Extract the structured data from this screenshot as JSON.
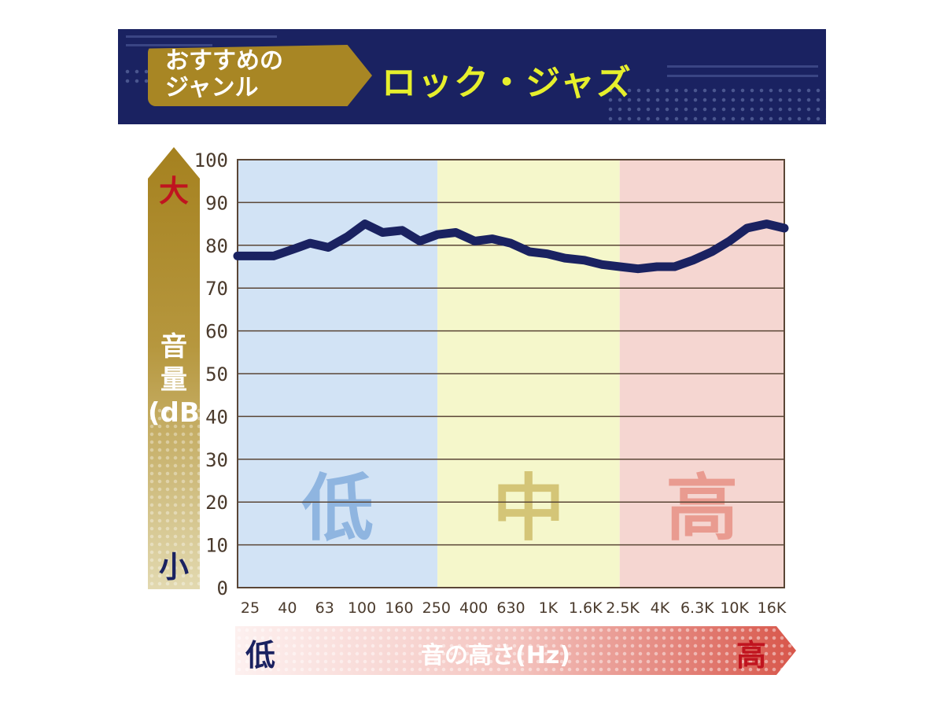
{
  "header": {
    "badge_text": "おすすめの\nジャンル",
    "genre": "ロック・ジャズ"
  },
  "y_axis": {
    "big": "大",
    "label": "音\n量\n(dB)",
    "small": "小"
  },
  "x_axis": {
    "low": "低",
    "label": "音の高さ(Hz)",
    "high": "高"
  },
  "colors": {
    "header_bg": "#1a2261",
    "badge": "#a88624",
    "genre_text": "#e6ef2c",
    "line": "#1a2261",
    "band_low": "#d2e3f5",
    "band_mid": "#f5f7cb",
    "band_high": "#f5d6d1",
    "band_low_text": "#8fb5e0",
    "band_mid_text": "#d4c577",
    "band_high_text": "#e99b90"
  },
  "chart_data": {
    "type": "line",
    "ylim": [
      0,
      100
    ],
    "yticks": [
      "0",
      "10",
      "20",
      "30",
      "40",
      "50",
      "60",
      "70",
      "80",
      "90",
      "100"
    ],
    "x_tick_labels": [
      "25",
      "40",
      "63",
      "100",
      "160",
      "250",
      "400",
      "630",
      "1K",
      "1.6K",
      "2.5K",
      "4K",
      "6.3K",
      "10K",
      "16K"
    ],
    "bands": [
      {
        "label": "低",
        "from": "25",
        "to": "250"
      },
      {
        "label": "中",
        "from": "250",
        "to": "2.5K"
      },
      {
        "label": "高",
        "from": "2.5K",
        "to": "16K"
      }
    ],
    "grid": true,
    "series": [
      {
        "x": [
          20,
          25,
          31.5,
          40,
          50,
          63,
          80,
          100,
          125,
          160,
          200,
          250,
          315,
          400,
          500,
          630,
          800,
          1000,
          1250,
          1600,
          2000,
          2500,
          3150,
          4000,
          5000,
          6300,
          8000,
          10000,
          12500,
          16000,
          20000
        ],
        "values": [
          77.5,
          77.5,
          77.5,
          79,
          80.5,
          79.5,
          82,
          85,
          83,
          83.5,
          81,
          82.5,
          83,
          81,
          81.5,
          80.5,
          78.5,
          78,
          77,
          76.5,
          75.5,
          75,
          74.5,
          75,
          75,
          76.5,
          78.5,
          81,
          84,
          85,
          84
        ]
      }
    ]
  }
}
